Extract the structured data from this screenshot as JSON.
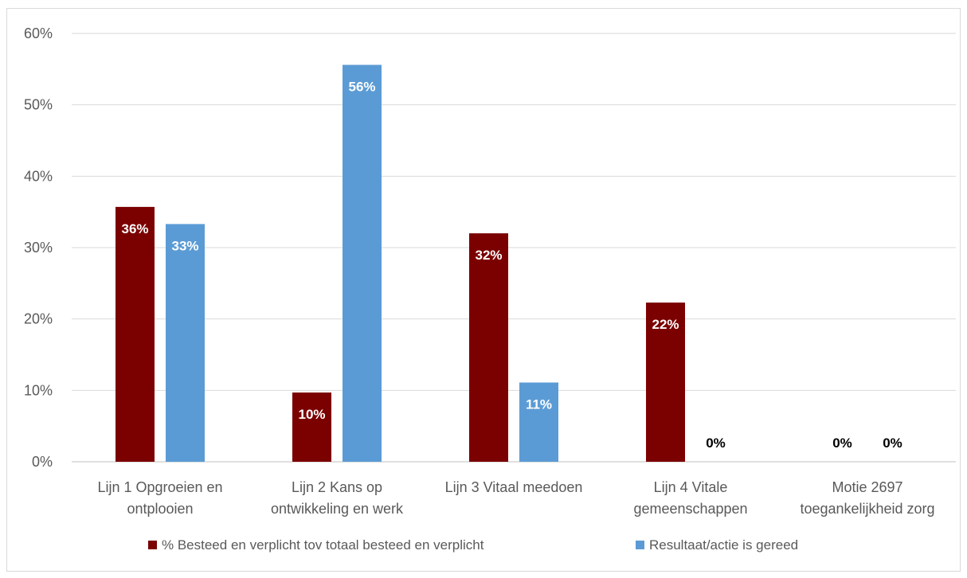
{
  "chart_data": {
    "type": "bar",
    "categories": [
      [
        "Lijn 1 Opgroeien en",
        "ontplooien"
      ],
      [
        "Lijn 2 Kans op",
        "ontwikkeling en werk"
      ],
      [
        "Lijn 3 Vitaal meedoen"
      ],
      [
        "Lijn 4 Vitale",
        "gemeenschappen"
      ],
      [
        "Motie 2697",
        "toegankelijkheid zorg"
      ]
    ],
    "series": [
      {
        "name": "% Besteed en verplicht tov totaal besteed en verplicht",
        "color": "#7b0000",
        "values": [
          35.7,
          9.7,
          32.0,
          22.3,
          0
        ],
        "labels": [
          "36%",
          "10%",
          "32%",
          "22%",
          "0%"
        ]
      },
      {
        "name": "Resultaat/actie is gereed",
        "color": "#5b9bd5",
        "values": [
          33.3,
          55.6,
          11.1,
          0,
          0
        ],
        "labels": [
          "33%",
          "56%",
          "11%",
          "0%",
          "0%"
        ]
      }
    ],
    "y_ticks": [
      "0%",
      "10%",
      "20%",
      "30%",
      "40%",
      "50%",
      "60%"
    ],
    "ylim": [
      0,
      60
    ],
    "grid": true,
    "legend_position": "bottom",
    "xlabel": "",
    "ylabel": "",
    "title": ""
  }
}
